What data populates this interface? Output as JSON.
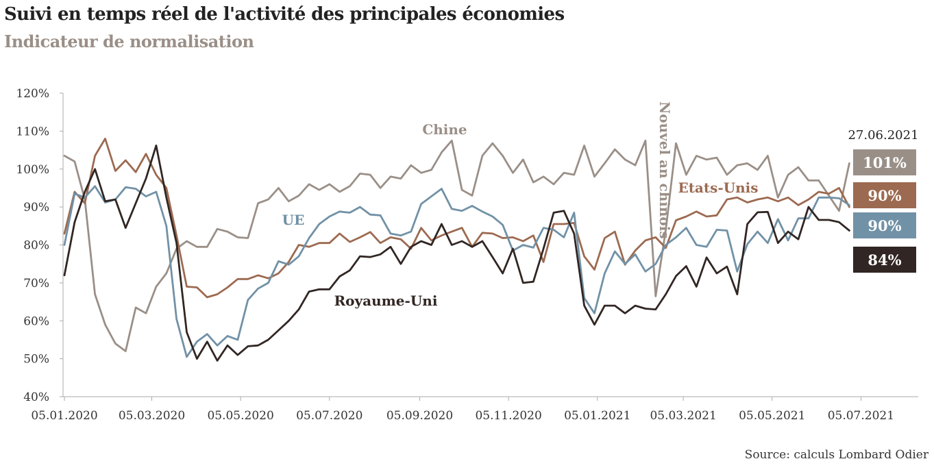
{
  "header": {
    "title": "Suivi en temps réel de l'activité des principales économies",
    "subtitle": "Indicateur de normalisation"
  },
  "footer": {
    "source": "Source: calculs Lombard Odier"
  },
  "chart_data": {
    "type": "line",
    "title": "Suivi en temps réel de l'activité des principales économies",
    "subtitle": "Indicateur de normalisation",
    "xlabel": "",
    "ylabel": "",
    "ylim": [
      40,
      120
    ],
    "grid": false,
    "y_ticks": [
      40,
      50,
      60,
      70,
      80,
      90,
      100,
      110,
      120
    ],
    "y_tick_labels": [
      "40%",
      "50%",
      "60%",
      "70%",
      "80%",
      "90%",
      "100%",
      "110%",
      "120%"
    ],
    "x_ticks": [
      "05.01.2020",
      "05.03.2020",
      "05.05.2020",
      "05.07.2020",
      "05.09.2020",
      "05.11.2020",
      "05.01.2021",
      "05.03.2021",
      "05.05.2021",
      "05.07.2021"
    ],
    "x_start": "2020-01-05",
    "x_step_days": 7,
    "latest_date": "27.06.2021",
    "annotation": {
      "text": "Nouvel an chinois",
      "date": "2021-02-14"
    },
    "series": [
      {
        "name": "Chine",
        "color": "#9a8f87",
        "latest_label": "101%",
        "values": [
          103.5,
          102,
          92,
          67,
          59,
          54,
          52,
          63.5,
          62,
          69,
          72.5,
          79,
          81,
          79.5,
          79.5,
          84.2,
          83.5,
          82,
          81.8,
          91,
          92,
          95,
          91.5,
          93,
          96,
          94.5,
          96,
          94,
          95.5,
          98.8,
          98.5,
          95,
          98,
          97.5,
          101,
          99,
          99.8,
          104.4,
          107.5,
          94.5,
          93,
          103.5,
          106.8,
          103.5,
          99,
          102.5,
          96.5,
          98,
          96,
          99,
          98.5,
          106.2,
          98,
          101.5,
          105.2,
          102.5,
          101,
          107.5,
          66.5,
          84,
          106.8,
          98.5,
          103.5,
          102.5,
          103,
          98.5,
          101,
          101.5,
          99.8,
          103.5,
          92.5,
          98.5,
          100.5,
          97,
          97,
          93,
          89,
          101.5
        ]
      },
      {
        "name": "Etats-Unis",
        "color": "#9c6a50",
        "latest_label": "90%",
        "values": [
          83,
          94,
          91,
          103.5,
          108,
          99.5,
          102.3,
          99.2,
          104,
          98.5,
          95,
          82.5,
          69,
          68.8,
          66.2,
          67,
          68.8,
          71,
          71,
          72,
          71.2,
          72.5,
          75.5,
          80,
          79.5,
          80.5,
          80.5,
          83,
          80.8,
          82,
          83.4,
          80.5,
          82,
          81.5,
          79,
          84.5,
          81.2,
          82.5,
          83.5,
          84.5,
          79.5,
          83.2,
          83,
          81.8,
          82,
          81,
          82.5,
          75.5,
          85.5,
          85.5,
          85.8,
          77,
          73.5,
          81.8,
          83.5,
          74.8,
          78.5,
          81.2,
          82,
          79.2,
          86.5,
          87.5,
          88.8,
          87.5,
          87.8,
          92,
          92.5,
          91.2,
          92,
          92.5,
          91.5,
          92.5,
          90.5,
          92,
          94,
          93.5,
          95,
          90
        ]
      },
      {
        "name": "UE",
        "color": "#7191a6",
        "latest_label": "90%",
        "values": [
          80,
          93.5,
          92.5,
          95.5,
          91.2,
          92,
          95.2,
          94.8,
          92.8,
          94,
          85,
          60.5,
          50.5,
          54.5,
          56.5,
          53.5,
          56,
          55,
          65.5,
          68.5,
          70,
          75.7,
          74.8,
          77,
          81.8,
          85.5,
          87.5,
          88.8,
          88.5,
          90,
          88,
          87.8,
          83,
          82.5,
          83.5,
          90.8,
          92.8,
          94.8,
          89.5,
          89,
          90.3,
          88.8,
          87.5,
          85.3,
          78.5,
          80,
          79.3,
          84.5,
          84,
          82,
          88.5,
          66,
          62,
          72.5,
          78.3,
          75,
          77.5,
          73,
          75,
          80,
          82,
          84.5,
          80,
          79.5,
          84,
          83.8,
          73,
          80.2,
          83.5,
          80.5,
          86.8,
          81.2,
          87,
          87,
          92.5,
          92.5,
          92.3,
          90.5
        ]
      },
      {
        "name": "Royaume-Uni",
        "color": "#312623",
        "latest_label": "84%",
        "values": [
          72,
          86,
          94,
          100,
          91.5,
          92,
          84.5,
          91,
          97.5,
          106.2,
          92.5,
          80.5,
          57,
          50,
          54.5,
          49.5,
          53.5,
          51,
          53.3,
          53.5,
          55,
          57.5,
          60,
          63,
          67.7,
          68.3,
          68.3,
          71.7,
          73.3,
          77,
          76.8,
          77.5,
          79.5,
          75,
          79.5,
          81,
          80,
          85.5,
          80,
          81,
          79.5,
          81,
          76.8,
          72.5,
          79,
          70,
          70.3,
          79,
          88.5,
          89,
          83,
          64,
          59,
          64,
          64,
          62,
          64,
          63.2,
          63,
          67,
          71.8,
          74.4,
          69,
          76.7,
          72.5,
          74.3,
          67,
          85.5,
          88.6,
          88.7,
          80.5,
          83.5,
          81.5,
          90,
          86.6,
          86.6,
          86,
          83.8
        ]
      }
    ]
  }
}
